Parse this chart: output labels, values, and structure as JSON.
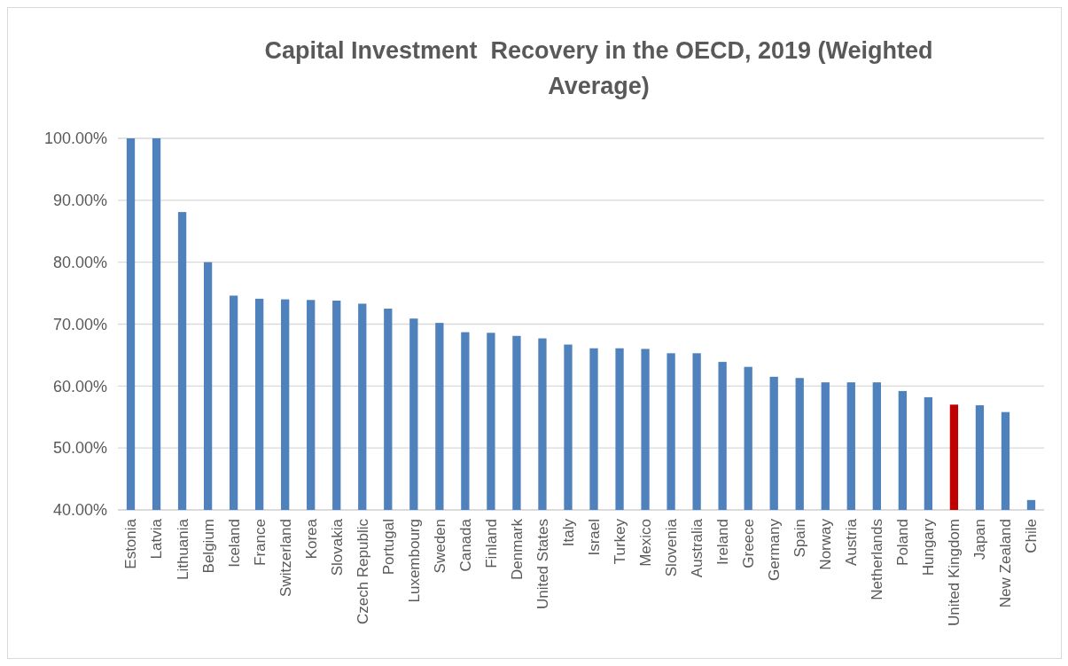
{
  "chart_data": {
    "type": "bar",
    "title": "Capital Investment  Recovery in the OECD, 2019 (Weighted Average)",
    "categories": [
      "Estonia",
      "Latvia",
      "Lithuania",
      "Belgium",
      "Iceland",
      "France",
      "Switzerland",
      "Korea",
      "Slovakia",
      "Czech Republic",
      "Portugal",
      "Luxembourg",
      "Sweden",
      "Canada",
      "Finland",
      "Denmark",
      "United States",
      "Italy",
      "Israel",
      "Turkey",
      "Mexico",
      "Slovenia",
      "Australia",
      "Ireland",
      "Greece",
      "Germany",
      "Spain",
      "Norway",
      "Austria",
      "Netherlands",
      "Poland",
      "Hungary",
      "United Kingdom",
      "Japan",
      "New Zealand",
      "Chile"
    ],
    "values": [
      100,
      100,
      88.1,
      80.0,
      74.6,
      74.1,
      74.0,
      73.9,
      73.8,
      73.3,
      72.5,
      70.9,
      70.2,
      68.7,
      68.6,
      68.1,
      67.7,
      66.7,
      66.1,
      66.1,
      66.0,
      65.3,
      65.3,
      63.9,
      63.1,
      61.5,
      61.3,
      60.6,
      60.6,
      60.6,
      59.2,
      58.2,
      57.0,
      56.9,
      55.8,
      41.6
    ],
    "colors": [
      "#4f81bd",
      "#4f81bd",
      "#4f81bd",
      "#4f81bd",
      "#4f81bd",
      "#4f81bd",
      "#4f81bd",
      "#4f81bd",
      "#4f81bd",
      "#4f81bd",
      "#4f81bd",
      "#4f81bd",
      "#4f81bd",
      "#4f81bd",
      "#4f81bd",
      "#4f81bd",
      "#4f81bd",
      "#4f81bd",
      "#4f81bd",
      "#4f81bd",
      "#4f81bd",
      "#4f81bd",
      "#4f81bd",
      "#4f81bd",
      "#4f81bd",
      "#4f81bd",
      "#4f81bd",
      "#4f81bd",
      "#4f81bd",
      "#4f81bd",
      "#4f81bd",
      "#4f81bd",
      "#c00000",
      "#4f81bd",
      "#4f81bd",
      "#4f81bd"
    ],
    "ylim": [
      40,
      100
    ],
    "yticks": [
      {
        "value": 40,
        "label": "40.00%"
      },
      {
        "value": 50,
        "label": "50.00%"
      },
      {
        "value": 60,
        "label": "60.00%"
      },
      {
        "value": 70,
        "label": "70.00%"
      },
      {
        "value": 80,
        "label": "80.00%"
      },
      {
        "value": 90,
        "label": "90.00%"
      },
      {
        "value": 100,
        "label": "100.00%"
      }
    ],
    "grid": "y"
  }
}
